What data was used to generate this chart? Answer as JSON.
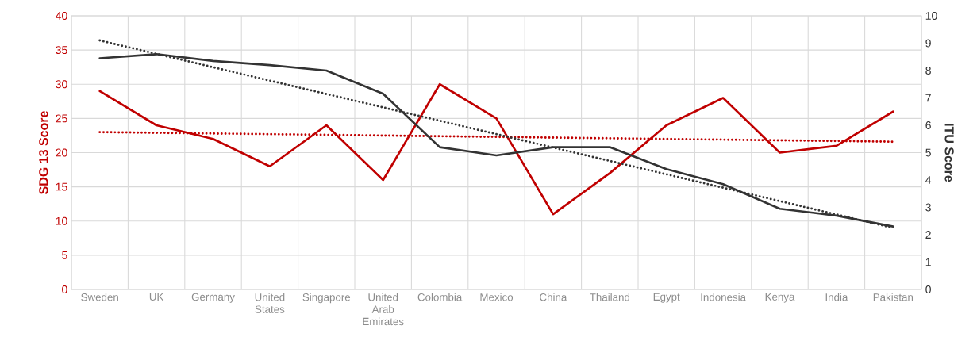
{
  "chart_data": {
    "type": "line",
    "categories": [
      "Sweden",
      "UK",
      "Germany",
      "United States",
      "Singapore",
      "United Arab Emirates",
      "Colombia",
      "Mexico",
      "China",
      "Thailand",
      "Egypt",
      "Indonesia",
      "Kenya",
      "India",
      "Pakistan"
    ],
    "series": [
      {
        "color": "#c00000",
        "values": [
          29,
          24,
          22,
          18,
          24,
          16,
          30,
          25,
          11,
          17,
          24,
          28,
          20,
          21,
          26
        ]
      },
      {
        "color": "#333333",
        "axis": "y2",
        "values": [
          8.45,
          8.6,
          8.35,
          8.2,
          8.0,
          7.15,
          5.2,
          4.9,
          5.2,
          5.2,
          4.4,
          3.85,
          2.95,
          2.7,
          2.3
        ]
      },
      {
        "type": "line",
        "color": "#c00000",
        "line_style": "dotted",
        "x": [
          "Sweden",
          "Pakistan"
        ],
        "values": [
          23,
          21.6
        ]
      },
      {
        "type": "line",
        "color": "#333333",
        "line_style": "dotted",
        "axis": "y2",
        "x": [
          "Sweden",
          "Pakistan"
        ],
        "values": [
          9.1,
          2.25
        ]
      }
    ],
    "ylabel": "SDG 13 Score",
    "y2label": "ITU Score",
    "ylim": [
      0,
      40
    ],
    "yticks": [
      0,
      5,
      10,
      15,
      20,
      25,
      30,
      35,
      40
    ],
    "y2lim": [
      0,
      10
    ],
    "y2ticks": [
      0,
      1,
      2,
      3,
      4,
      5,
      6,
      7,
      8,
      9,
      10
    ],
    "grid": true,
    "line_style": "solid",
    "marker": "none"
  }
}
